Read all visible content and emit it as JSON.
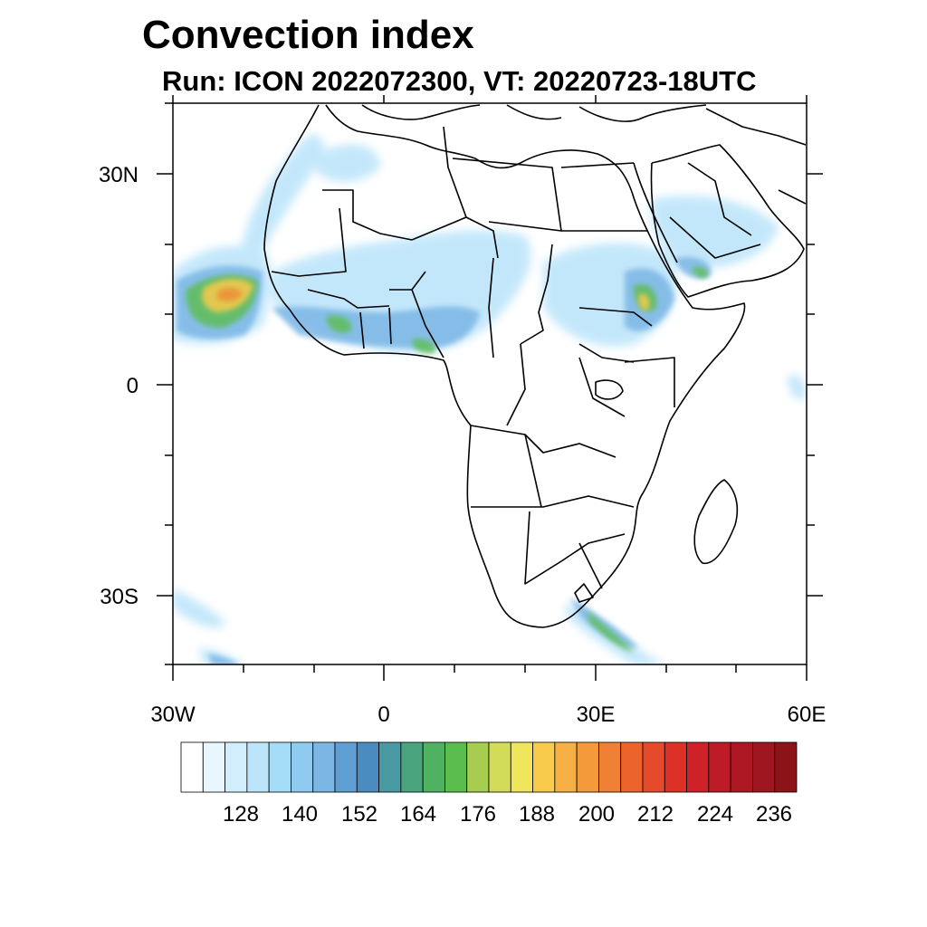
{
  "title": "Convection index",
  "subtitle": "Run: ICON 2022072300,  VT: 20220723-18UTC",
  "map": {
    "region": "Africa",
    "projection": "cylindrical equidistant",
    "lon_range": [
      -30,
      60
    ],
    "lat_range": [
      -40,
      40
    ],
    "lat_labels": [
      "30N",
      "0",
      "30S"
    ],
    "lon_labels": [
      "30W",
      "0",
      "30E",
      "60E"
    ]
  },
  "colorbar": {
    "tick_labels": [
      "128",
      "140",
      "152",
      "164",
      "176",
      "188",
      "200",
      "212",
      "224",
      "236"
    ],
    "colors": [
      "#ffffff",
      "#e8f6fd",
      "#d2edfb",
      "#bde5fa",
      "#a5dcf7",
      "#8fcbf0",
      "#7bb6e5",
      "#5f9fd4",
      "#4b8cc0",
      "#4a9aa4",
      "#4aa47e",
      "#4fb162",
      "#5bbd4e",
      "#a6cd4f",
      "#d2dc58",
      "#f0e65b",
      "#f8cb4c",
      "#f7b043",
      "#f59a3a",
      "#f08033",
      "#ec642c",
      "#e54a2a",
      "#dd3128",
      "#ce2228",
      "#bd1b26",
      "#ad1724",
      "#9e1620",
      "#8c1419"
    ]
  }
}
